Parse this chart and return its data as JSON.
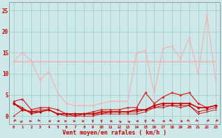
{
  "background_color": "#cce8e8",
  "grid_color": "#aacccc",
  "xlabel": "Vent moyen/en rafales ( km/h )",
  "yticks": [
    0,
    5,
    10,
    15,
    20,
    25
  ],
  "ylim": [
    -2,
    27
  ],
  "xlim": [
    -0.5,
    23.5
  ],
  "lines": [
    {
      "y": [
        13,
        15,
        13,
        8.5,
        10.5,
        5.5,
        3,
        2.5,
        2.5,
        2.5,
        3,
        3.5,
        3.5,
        3.5,
        15,
        15.5,
        5.5,
        16,
        16.5,
        13.5,
        18.5,
        10,
        24,
        8.5
      ],
      "color": "#ffaaaa",
      "lw": 0.8,
      "marker": "D",
      "ms": 1.5,
      "zorder": 3
    },
    {
      "y": [
        13,
        13,
        13,
        13,
        13,
        13,
        13,
        13,
        13,
        13,
        13,
        13,
        13,
        13,
        13,
        13,
        13,
        13,
        13,
        13,
        13,
        13,
        13,
        13
      ],
      "color": "#ffaaaa",
      "lw": 1.0,
      "marker": null,
      "ms": 0,
      "zorder": 2
    },
    {
      "y": [
        3.5,
        4,
        1.5,
        2,
        2,
        1.5,
        0.5,
        0.5,
        0.5,
        1,
        1.5,
        1.5,
        1.5,
        2,
        2,
        5.5,
        3,
        4.5,
        5.5,
        5,
        5.5,
        3,
        2,
        2.5
      ],
      "color": "#dd2222",
      "lw": 0.9,
      "marker": "D",
      "ms": 2.0,
      "zorder": 5
    },
    {
      "y": [
        3,
        1.5,
        1,
        1,
        1.5,
        0.5,
        0.5,
        0.5,
        0.5,
        0.5,
        1,
        1,
        1,
        1,
        1.5,
        1.5,
        2.5,
        3,
        3,
        3,
        3,
        2,
        2,
        2.5
      ],
      "color": "#cc0000",
      "lw": 1.2,
      "marker": "D",
      "ms": 2.5,
      "zorder": 6
    },
    {
      "y": [
        3,
        2,
        0.5,
        1,
        1.5,
        0.5,
        0.5,
        0,
        0.5,
        0.5,
        0.5,
        1,
        1,
        1,
        1,
        1.5,
        2,
        2.5,
        2.5,
        2.5,
        2.5,
        1,
        1.5,
        2
      ],
      "color": "#cc0000",
      "lw": 0.7,
      "marker": "D",
      "ms": 1.5,
      "zorder": 4
    },
    {
      "y": [
        0,
        1.5,
        1,
        1.5,
        1.5,
        0.5,
        0,
        0,
        0,
        0,
        0.5,
        0.5,
        0.5,
        0.5,
        0.5,
        1,
        2,
        2,
        2.5,
        2,
        2.5,
        0.5,
        1,
        1.5
      ],
      "color": "#cc0000",
      "lw": 0.6,
      "marker": "D",
      "ms": 1.2,
      "zorder": 4
    }
  ],
  "wind_arrows": {
    "x": [
      0,
      1,
      2,
      3,
      4,
      5,
      6,
      7,
      8,
      9,
      10,
      11,
      12,
      13,
      14,
      15,
      16,
      17,
      18,
      19,
      20,
      21,
      22,
      23
    ],
    "angles_deg": [
      225,
      45,
      90,
      135,
      270,
      270,
      90,
      90,
      90,
      180,
      180,
      270,
      315,
      315,
      270,
      180,
      135,
      270,
      135,
      270,
      135,
      135,
      225,
      225
    ]
  },
  "x_labels": [
    "0",
    "1",
    "2",
    "3",
    "4",
    "5",
    "6",
    "7",
    "8",
    "9",
    "10",
    "11",
    "12",
    "13",
    "14",
    "15",
    "16",
    "17",
    "18",
    "19",
    "20",
    "21",
    "22",
    "23"
  ]
}
